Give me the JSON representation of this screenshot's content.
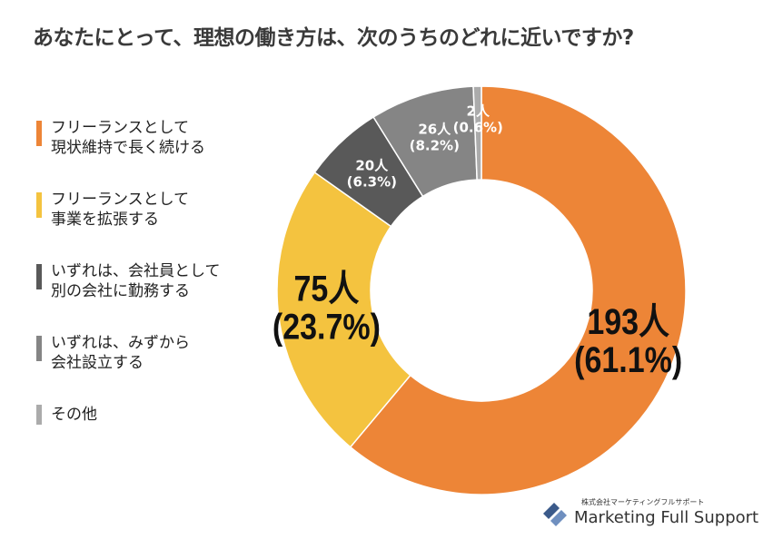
{
  "chart_data": {
    "type": "pie",
    "donut": true,
    "title": "あなたにとって、理想の働き方は、次のうちのどれに近いですか?",
    "categories": [
      "フリーランスとして\n現状維持で長く続ける",
      "フリーランスとして\n事業を拡張する",
      "いずれは、会社員として\n別の会社に勤務する",
      "いずれは、みずから\n会社設立する",
      "その他"
    ],
    "values": [
      193,
      75,
      20,
      26,
      2
    ],
    "value_labels": [
      "193人",
      "75人",
      "20人",
      "26人",
      "2人"
    ],
    "percents": [
      61.1,
      23.7,
      6.3,
      8.2,
      0.6
    ],
    "percent_labels": [
      "(61.1%)",
      "(23.7%)",
      "(6.3%)",
      "(8.2%)",
      "(0.6%)"
    ],
    "colors": [
      "#ed8537",
      "#f4c33f",
      "#595959",
      "#858585",
      "#ababab"
    ],
    "legend": "left"
  },
  "logo": {
    "company": "株式会社マーケティングフルサポート",
    "name": "Marketing Full Support"
  }
}
